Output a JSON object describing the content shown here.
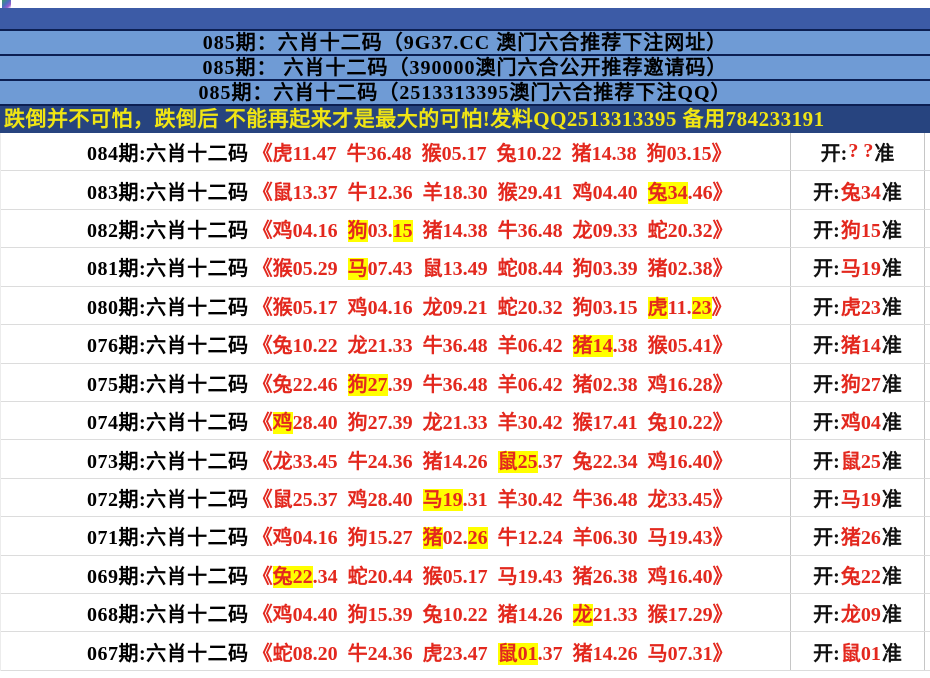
{
  "headers": [
    {
      "text": "085期：六肖十二码（9G37.CC 澳门六合推荐下注网址）"
    },
    {
      "text": "085期： 六肖十二码（390000澳门六合公开推荐邀请码）"
    },
    {
      "text": "085期：六肖十二码（2513313395澳门六合推荐下注QQ）"
    }
  ],
  "notice": {
    "text": "跌倒并不可怕，跌倒后 不能再起来才是最大的可怕!发料QQ2513313395 备用784233191"
  },
  "table": {
    "bracket_open": "《",
    "bracket_close": "》",
    "result_prefix": "开:",
    "result_suffix": "准",
    "rows": [
      {
        "label": "084期:六肖十二码",
        "segments": [
          {
            "t": "虎11.47 牛36.48 猴05.17 兔10.22 猪14.38 狗03.15",
            "hl": false
          }
        ],
        "result": "? ?"
      },
      {
        "label": "083期:六肖十二码",
        "segments": [
          {
            "t": "鼠13.37 牛12.36 羊18.30 猴29.41 鸡04.40 ",
            "hl": false
          },
          {
            "t": "兔34",
            "hl": true
          },
          {
            "t": ".46",
            "hl": false
          }
        ],
        "result": "兔34"
      },
      {
        "label": "082期:六肖十二码",
        "segments": [
          {
            "t": "鸡04.16 ",
            "hl": false
          },
          {
            "t": "狗",
            "hl": true
          },
          {
            "t": "03.",
            "hl": false
          },
          {
            "t": "15",
            "hl": true
          },
          {
            "t": " 猪14.38 牛36.48 龙09.33 蛇20.32",
            "hl": false
          }
        ],
        "result": "狗15"
      },
      {
        "label": "081期:六肖十二码",
        "segments": [
          {
            "t": "猴05.29 ",
            "hl": false
          },
          {
            "t": "马",
            "hl": true
          },
          {
            "t": "07.43 鼠13.49 蛇08.44 狗03.39 猪02.38",
            "hl": false
          }
        ],
        "result": "马19"
      },
      {
        "label": "080期:六肖十二码",
        "segments": [
          {
            "t": "猴05.17 鸡04.16 龙09.21 蛇20.32 狗03.15 ",
            "hl": false
          },
          {
            "t": "虎",
            "hl": true
          },
          {
            "t": "11.",
            "hl": false
          },
          {
            "t": "23",
            "hl": true
          }
        ],
        "result": "虎23"
      },
      {
        "label": "076期:六肖十二码",
        "segments": [
          {
            "t": "兔10.22 龙21.33 牛36.48 羊06.42 ",
            "hl": false
          },
          {
            "t": "猪14",
            "hl": true
          },
          {
            "t": ".38 猴05.41",
            "hl": false
          }
        ],
        "result": "猪14"
      },
      {
        "label": "075期:六肖十二码",
        "segments": [
          {
            "t": "兔22.46 ",
            "hl": false
          },
          {
            "t": "狗27",
            "hl": true
          },
          {
            "t": ".39 牛36.48 羊06.42 猪02.38 鸡16.28",
            "hl": false
          }
        ],
        "result": "狗27"
      },
      {
        "label": "074期:六肖十二码",
        "segments": [
          {
            "t": "鸡",
            "hl": true
          },
          {
            "t": "28.40 狗27.39 龙21.33 羊30.42 猴17.41 兔10.22",
            "hl": false
          }
        ],
        "result": "鸡04"
      },
      {
        "label": "073期:六肖十二码",
        "segments": [
          {
            "t": "龙33.45 牛24.36 猪14.26 ",
            "hl": false
          },
          {
            "t": "鼠25",
            "hl": true
          },
          {
            "t": ".37 兔22.34 鸡16.40",
            "hl": false
          }
        ],
        "result": "鼠25"
      },
      {
        "label": "072期:六肖十二码",
        "segments": [
          {
            "t": "鼠25.37 鸡28.40 ",
            "hl": false
          },
          {
            "t": "马19",
            "hl": true
          },
          {
            "t": ".31 羊30.42 牛36.48 龙33.45",
            "hl": false
          }
        ],
        "result": "马19"
      },
      {
        "label": "071期:六肖十二码",
        "segments": [
          {
            "t": "鸡04.16 狗15.27 ",
            "hl": false
          },
          {
            "t": "猪",
            "hl": true
          },
          {
            "t": "02.",
            "hl": false
          },
          {
            "t": "26",
            "hl": true
          },
          {
            "t": " 牛12.24 羊06.30 马19.43",
            "hl": false
          }
        ],
        "result": "猪26"
      },
      {
        "label": "069期:六肖十二码",
        "segments": [
          {
            "t": "兔22",
            "hl": true
          },
          {
            "t": ".34 蛇20.44 猴05.17 马19.43 猪26.38 鸡16.40",
            "hl": false
          }
        ],
        "result": "兔22"
      },
      {
        "label": "068期:六肖十二码",
        "segments": [
          {
            "t": "鸡04.40 狗15.39 兔10.22 猪14.26 ",
            "hl": false
          },
          {
            "t": "龙",
            "hl": true
          },
          {
            "t": "21.33 猴17.29",
            "hl": false
          }
        ],
        "result": "龙09"
      },
      {
        "label": "067期:六肖十二码",
        "segments": [
          {
            "t": "蛇08.20 牛24.36 虎23.47 ",
            "hl": false
          },
          {
            "t": "鼠01",
            "hl": true
          },
          {
            "t": ".37 猪14.26 马07.31",
            "hl": false
          }
        ],
        "result": "鼠01"
      }
    ]
  },
  "colors": {
    "band_blue": "#3c5ba6",
    "header_blue": "#6f9bd5",
    "header_border": "#0c1f52",
    "notice_bg": "#27447f",
    "notice_text": "#f0e514",
    "red": "#e3281e",
    "highlight": "#ffff00"
  }
}
